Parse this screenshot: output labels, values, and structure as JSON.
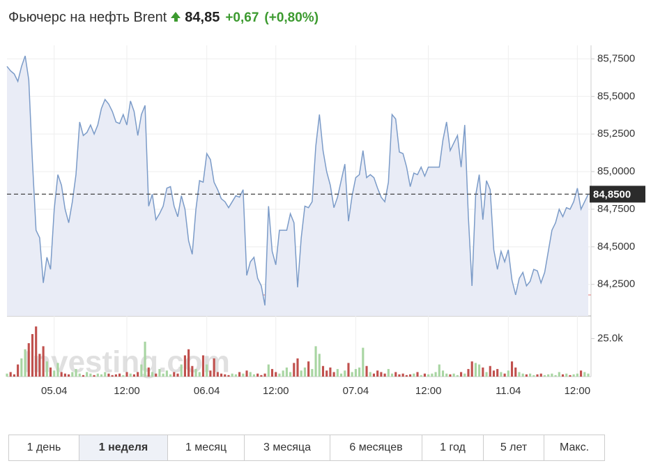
{
  "header": {
    "title": "Фьючерс на нефть Brent",
    "price": "84,85",
    "change": "+0,67",
    "change_pct": "(+0,80%)"
  },
  "chart_data": [
    {
      "type": "line",
      "color": "#7b9bc8",
      "fill": "#e9ecf6",
      "series": [
        {
          "values": [
            85.7,
            85.67,
            85.65,
            85.6,
            85.7,
            85.77,
            85.61,
            85.07,
            84.61,
            84.56,
            84.26,
            84.43,
            84.35,
            84.75,
            84.98,
            84.91,
            84.75,
            84.66,
            84.8,
            84.98,
            85.33,
            85.24,
            85.26,
            85.31,
            85.25,
            85.31,
            85.42,
            85.48,
            85.45,
            85.4,
            85.33,
            85.32,
            85.38,
            85.31,
            85.47,
            85.4,
            85.24,
            85.38,
            85.44,
            84.77,
            84.85,
            84.68,
            84.72,
            84.77,
            84.89,
            84.9,
            84.77,
            84.7,
            84.84,
            84.75,
            84.54,
            84.45,
            84.75,
            84.94,
            84.93,
            85.12,
            85.08,
            84.93,
            84.88,
            84.82,
            84.8,
            84.76,
            84.8,
            84.84,
            84.83,
            84.88,
            84.31,
            84.4,
            84.43,
            84.29,
            84.24,
            84.11,
            84.77,
            84.47,
            84.38,
            84.61,
            84.61,
            84.61,
            84.72,
            84.66,
            84.23,
            84.56,
            84.77,
            84.76,
            84.8,
            85.17,
            85.38,
            85.14,
            85.0,
            84.91,
            84.76,
            84.83,
            84.94,
            85.05,
            84.67,
            84.84,
            84.96,
            84.98,
            85.14,
            84.96,
            84.98,
            84.96,
            84.89,
            84.83,
            84.8,
            84.93,
            85.38,
            85.35,
            85.13,
            85.12,
            85.03,
            84.9,
            84.99,
            84.98,
            85.03,
            84.97,
            85.03,
            85.03,
            85.03,
            85.03,
            85.21,
            85.33,
            85.14,
            85.19,
            85.24,
            85.03,
            85.31,
            84.7,
            84.24,
            84.84,
            84.98,
            84.68,
            84.94,
            84.88,
            84.48,
            84.35,
            84.47,
            84.4,
            84.48,
            84.28,
            84.18,
            84.29,
            84.33,
            84.24,
            84.27,
            84.35,
            84.34,
            84.26,
            84.33,
            84.47,
            84.61,
            84.66,
            84.75,
            84.7,
            84.76,
            84.75,
            84.8,
            84.89,
            84.75,
            84.8,
            84.85
          ]
        }
      ],
      "xlim": [
        0,
        160
      ],
      "xticks": [
        {
          "value": 13,
          "label": "05.04"
        },
        {
          "value": 33,
          "label": "12:00"
        },
        {
          "value": 55,
          "label": "06.04"
        },
        {
          "value": 74,
          "label": "12:00"
        },
        {
          "value": 96,
          "label": "07.04"
        },
        {
          "value": 116,
          "label": "12:00"
        },
        {
          "value": 138,
          "label": "11.04"
        },
        {
          "value": 157,
          "label": "12:00"
        }
      ],
      "ylim": [
        84.04,
        85.84
      ],
      "yticks": [
        {
          "value": 84.25,
          "label": "84,2500"
        },
        {
          "value": 84.5,
          "label": "84,5000"
        },
        {
          "value": 84.75,
          "label": "84,7500"
        },
        {
          "value": 85.0,
          "label": "85,0000"
        },
        {
          "value": 85.25,
          "label": "85,2500"
        },
        {
          "value": 85.5,
          "label": "85,5000"
        },
        {
          "value": 85.75,
          "label": "85,7500"
        }
      ],
      "last": {
        "value": 84.85,
        "label": "84,8500"
      },
      "prev_close": 84.18,
      "prev_close_color": "#e8a0a0",
      "grid": true
    },
    {
      "type": "bar",
      "up_color": "#a8d5a2",
      "down_color": "#c0504d",
      "values": [
        2000,
        3000,
        1500,
        8000,
        12000,
        18000,
        22000,
        28000,
        33000,
        15000,
        20000,
        10000,
        6000,
        4000,
        9000,
        3000,
        2000,
        1500,
        3000,
        5000,
        2000,
        1000,
        3000,
        2000,
        1000,
        2000,
        1500,
        3000,
        2000,
        1000,
        1500,
        2000,
        1000,
        3000,
        2000,
        1500,
        3000,
        8000,
        23000,
        6000,
        3000,
        2000,
        5000,
        2000,
        4000,
        1500,
        3000,
        2000,
        8000,
        14000,
        18000,
        7000,
        5000,
        3000,
        14000,
        8000,
        4000,
        12000,
        3000,
        2000,
        1500,
        1000,
        2000,
        1500,
        3000,
        2000,
        4000,
        3000,
        1500,
        2000,
        1000,
        2000,
        8000,
        5000,
        3000,
        2000,
        4000,
        6000,
        3000,
        9000,
        12000,
        4000,
        6000,
        10000,
        5000,
        20000,
        15000,
        7000,
        4000,
        6000,
        3000,
        5000,
        2000,
        4000,
        9000,
        3000,
        5000,
        6000,
        19000,
        7000,
        3000,
        2000,
        4000,
        3000,
        2000,
        5000,
        2000,
        3000,
        1500,
        2000,
        1000,
        1500,
        2000,
        3000,
        1000,
        2000,
        1500,
        2000,
        3000,
        8000,
        4000,
        2000,
        1500,
        2000,
        1000,
        3000,
        2000,
        5000,
        10000,
        9000,
        8000,
        6000,
        3000,
        7000,
        4000,
        5000,
        3000,
        2000,
        4000,
        10000,
        6000,
        3000,
        2000,
        1500,
        2000,
        1000,
        1500,
        2000,
        1000,
        1500,
        2000,
        1000,
        3000,
        1500,
        2000,
        1000,
        1500,
        2000,
        4000,
        3000,
        2000
      ],
      "ylim": [
        0,
        39000
      ],
      "yticks": [
        {
          "value": 25000,
          "label": "25.0k"
        }
      ],
      "watermark": "Investing.com"
    }
  ],
  "tabs": [
    "1 день",
    "1 неделя",
    "1 месяц",
    "3 месяца",
    "6 месяцев",
    "1 год",
    "5 лет",
    "Макс."
  ],
  "active_tab": 1
}
